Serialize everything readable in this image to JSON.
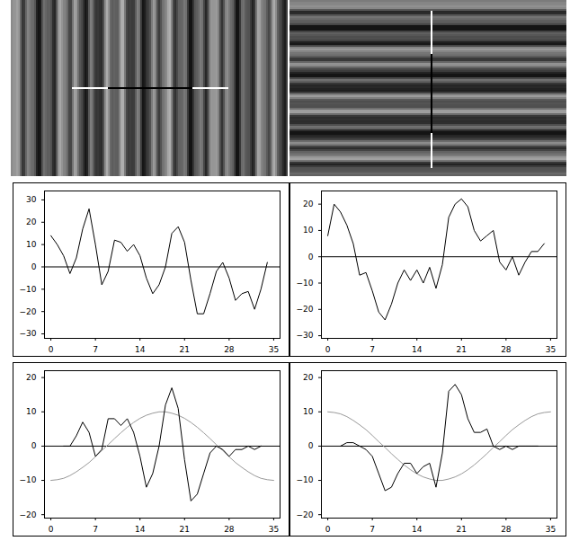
{
  "chart_data": [
    {
      "type": "line",
      "xlim": [
        -1,
        36
      ],
      "xticks": [
        0,
        7,
        14,
        21,
        28,
        35
      ],
      "ylim": [
        -32,
        34
      ],
      "yticks": [
        -30,
        -20,
        -10,
        0,
        10,
        20,
        30
      ],
      "hlines": [
        0
      ],
      "series": [
        {
          "color": "#000000",
          "x": [
            0,
            1,
            2,
            3,
            4,
            5,
            6,
            7,
            8,
            9,
            10,
            11,
            12,
            13,
            14,
            15,
            16,
            17,
            18,
            19,
            20,
            21,
            22,
            23,
            24,
            25,
            26,
            27,
            28,
            29,
            30,
            31,
            32,
            33,
            34
          ],
          "values": [
            14,
            10,
            5,
            -3,
            4,
            17,
            26,
            10,
            -8,
            -2,
            12,
            11,
            7,
            10,
            5,
            -5,
            -12,
            -8,
            0,
            15,
            18,
            11,
            -6,
            -21,
            -21,
            -12,
            -2,
            2,
            -5,
            -15,
            -12,
            -11,
            -19,
            -10,
            2
          ]
        }
      ]
    },
    {
      "type": "line",
      "xlim": [
        -1,
        36
      ],
      "xticks": [
        0,
        7,
        14,
        21,
        28,
        35
      ],
      "ylim": [
        -31,
        25
      ],
      "yticks": [
        -30,
        -20,
        -10,
        0,
        10,
        20
      ],
      "hlines": [
        0
      ],
      "series": [
        {
          "color": "#000000",
          "x": [
            0,
            1,
            2,
            3,
            4,
            5,
            6,
            7,
            8,
            9,
            10,
            11,
            12,
            13,
            14,
            15,
            16,
            17,
            18,
            19,
            20,
            21,
            22,
            23,
            24,
            25,
            26,
            27,
            28,
            29,
            30,
            31,
            32,
            33,
            34
          ],
          "values": [
            8,
            20,
            17,
            12,
            5,
            -7,
            -6,
            -13,
            -21,
            -24,
            -18,
            -10,
            -5,
            -9,
            -5,
            -10,
            -4,
            -12,
            -3,
            15,
            20,
            22,
            19,
            10,
            6,
            8,
            10,
            -2,
            -5,
            0,
            -7,
            -2,
            2,
            2,
            5
          ]
        }
      ]
    },
    {
      "type": "line",
      "xlim": [
        -1,
        36
      ],
      "xticks": [
        0,
        7,
        14,
        21,
        28,
        35
      ],
      "ylim": [
        -21,
        22
      ],
      "yticks": [
        -20,
        -10,
        0,
        10,
        20
      ],
      "hlines": [
        0
      ],
      "series": [
        {
          "color": "#999999",
          "x": [
            0,
            1,
            2,
            3,
            4,
            5,
            6,
            7,
            8,
            9,
            10,
            11,
            12,
            13,
            14,
            15,
            16,
            17,
            18,
            19,
            20,
            21,
            22,
            23,
            24,
            25,
            26,
            27,
            28,
            29,
            30,
            31,
            32,
            33,
            34,
            35
          ],
          "values": [
            -10,
            -9.8,
            -9.4,
            -8.6,
            -7.5,
            -6.2,
            -4.8,
            -3.1,
            -1.3,
            0.4,
            2.2,
            3.9,
            5.5,
            6.9,
            8.1,
            9.0,
            9.6,
            10,
            10,
            9.6,
            9.0,
            8.1,
            6.9,
            5.5,
            3.9,
            2.2,
            0.4,
            -1.3,
            -3.1,
            -4.8,
            -6.2,
            -7.5,
            -8.6,
            -9.4,
            -9.8,
            -10
          ]
        },
        {
          "color": "#000000",
          "x": [
            2,
            3,
            4,
            5,
            6,
            7,
            8,
            9,
            10,
            11,
            12,
            13,
            14,
            15,
            16,
            17,
            18,
            19,
            20,
            21,
            22,
            23,
            24,
            25,
            26,
            27,
            28,
            29,
            30,
            31,
            32,
            33
          ],
          "values": [
            0,
            0,
            3,
            7,
            4,
            -3,
            -1,
            8,
            8,
            6,
            8,
            4,
            -3,
            -12,
            -8,
            0,
            12,
            17,
            11,
            -4,
            -16,
            -14,
            -8,
            -2,
            0,
            -1,
            -3,
            -1,
            -1,
            0,
            -1,
            0
          ]
        }
      ]
    },
    {
      "type": "line",
      "xlim": [
        -1,
        36
      ],
      "xticks": [
        0,
        7,
        14,
        21,
        28,
        35
      ],
      "ylim": [
        -21,
        22
      ],
      "yticks": [
        -20,
        -10,
        0,
        10,
        20
      ],
      "hlines": [
        0
      ],
      "series": [
        {
          "color": "#999999",
          "x": [
            0,
            1,
            2,
            3,
            4,
            5,
            6,
            7,
            8,
            9,
            10,
            11,
            12,
            13,
            14,
            15,
            16,
            17,
            18,
            19,
            20,
            21,
            22,
            23,
            24,
            25,
            26,
            27,
            28,
            29,
            30,
            31,
            32,
            33,
            34,
            35
          ],
          "values": [
            10,
            9.8,
            9.4,
            8.6,
            7.5,
            6.2,
            4.8,
            3.1,
            1.3,
            -0.4,
            -2.2,
            -3.9,
            -5.5,
            -6.9,
            -8.1,
            -9.0,
            -9.6,
            -10,
            -10,
            -9.6,
            -9.0,
            -8.1,
            -6.9,
            -5.5,
            -3.9,
            -2.2,
            -0.4,
            1.3,
            3.1,
            4.8,
            6.2,
            7.5,
            8.6,
            9.4,
            9.8,
            10
          ]
        },
        {
          "color": "#000000",
          "x": [
            2,
            3,
            4,
            5,
            6,
            7,
            8,
            9,
            10,
            11,
            12,
            13,
            14,
            15,
            16,
            17,
            18,
            19,
            20,
            21,
            22,
            23,
            24,
            25,
            26,
            27,
            28,
            29,
            30,
            31,
            32,
            33
          ],
          "values": [
            0,
            1,
            1,
            0,
            -1,
            -3,
            -8,
            -13,
            -12,
            -8,
            -5,
            -5,
            -8,
            -6,
            -5,
            -12,
            -2,
            16,
            18,
            15,
            8,
            4,
            4,
            5,
            0,
            -1,
            0,
            -1,
            0,
            0,
            0,
            0
          ]
        }
      ]
    }
  ]
}
